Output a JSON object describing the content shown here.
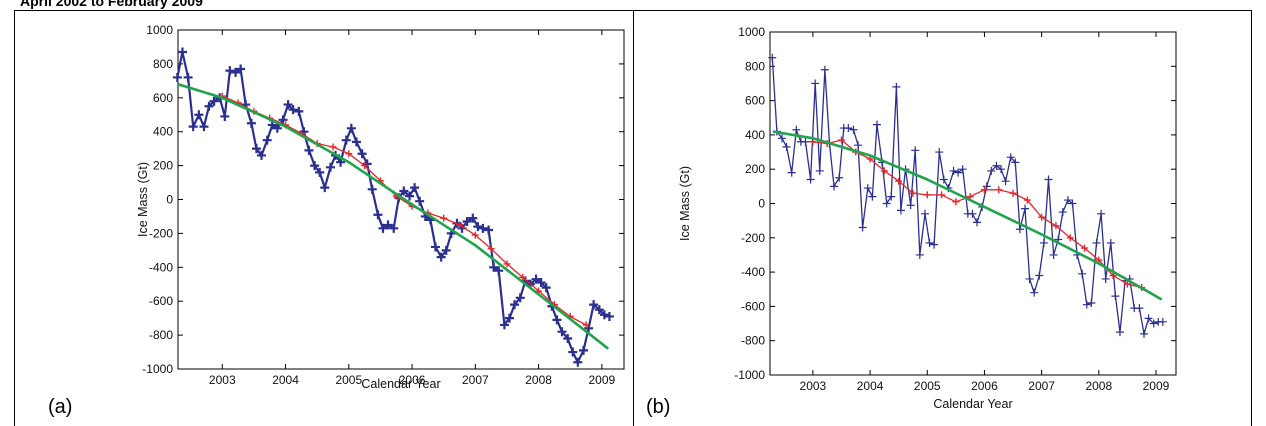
{
  "header": {
    "text": "April 2002 to February 2009"
  },
  "panels": [
    {
      "letter": "(a)"
    },
    {
      "letter": "(b)"
    }
  ],
  "chart_data": [
    {
      "type": "line",
      "panel": "(a)",
      "xlabel": "Calendar Year",
      "ylabel": "Ice Mass (Gt)",
      "xlim": [
        2002.3,
        2009.35
      ],
      "ylim": [
        -1000,
        1000
      ],
      "xticks": [
        2003,
        2004,
        2005,
        2006,
        2007,
        2008,
        2009
      ],
      "yticks": [
        -1000,
        -800,
        -600,
        -400,
        -200,
        0,
        200,
        400,
        600,
        800,
        1000
      ],
      "series": [
        {
          "color": "#2b2f8f",
          "marker": "+",
          "x": [
            2002.29,
            2002.37,
            2002.46,
            2002.54,
            2002.63,
            2002.71,
            2002.79,
            2002.87,
            2002.96,
            2003.04,
            2003.12,
            2003.21,
            2003.29,
            2003.37,
            2003.46,
            2003.54,
            2003.62,
            2003.71,
            2003.79,
            2003.87,
            2003.96,
            2004.04,
            2004.12,
            2004.21,
            2004.29,
            2004.37,
            2004.46,
            2004.54,
            2004.62,
            2004.71,
            2004.79,
            2004.87,
            2004.96,
            2005.04,
            2005.12,
            2005.21,
            2005.29,
            2005.37,
            2005.46,
            2005.54,
            2005.62,
            2005.71,
            2005.79,
            2005.87,
            2005.96,
            2006.04,
            2006.12,
            2006.21,
            2006.29,
            2006.37,
            2006.46,
            2006.54,
            2006.62,
            2006.71,
            2006.79,
            2006.87,
            2006.96,
            2007.04,
            2007.12,
            2007.21,
            2007.29,
            2007.37,
            2007.46,
            2007.54,
            2007.62,
            2007.71,
            2007.79,
            2007.87,
            2007.96,
            2008.04,
            2008.12,
            2008.21,
            2008.29,
            2008.37,
            2008.46,
            2008.54,
            2008.62,
            2008.71,
            2008.79,
            2008.87,
            2008.96,
            2009.04,
            2009.12
          ],
          "y": [
            720,
            870,
            720,
            430,
            500,
            430,
            550,
            580,
            600,
            490,
            760,
            750,
            770,
            560,
            450,
            300,
            260,
            350,
            440,
            420,
            470,
            560,
            530,
            520,
            400,
            290,
            200,
            160,
            70,
            190,
            260,
            220,
            350,
            420,
            340,
            270,
            210,
            60,
            -90,
            -170,
            -150,
            -170,
            10,
            50,
            20,
            70,
            -10,
            -100,
            -120,
            -280,
            -340,
            -300,
            -200,
            -140,
            -170,
            -130,
            -110,
            -160,
            -170,
            -180,
            -400,
            -420,
            -740,
            -700,
            -620,
            -580,
            -480,
            -500,
            -470,
            -490,
            -520,
            -630,
            -710,
            -780,
            -820,
            -900,
            -960,
            -890,
            -760,
            -620,
            -650,
            -680,
            -690
          ]
        },
        {
          "color": "#e3262b",
          "marker": "+",
          "x": [
            2003.0,
            2003.25,
            2003.5,
            2003.75,
            2004.0,
            2004.25,
            2004.5,
            2004.75,
            2005.0,
            2005.25,
            2005.5,
            2005.75,
            2006.0,
            2006.25,
            2006.5,
            2006.75,
            2007.0,
            2007.25,
            2007.5,
            2007.75,
            2008.0,
            2008.25,
            2008.5,
            2008.75
          ],
          "y": [
            610,
            570,
            520,
            480,
            440,
            390,
            330,
            310,
            270,
            200,
            110,
            20,
            -40,
            -80,
            -110,
            -150,
            -210,
            -290,
            -380,
            -460,
            -540,
            -620,
            -690,
            -740
          ]
        },
        {
          "color": "#1fa54b",
          "x": [
            2002.3,
            2003.0,
            2004.0,
            2005.0,
            2006.0,
            2007.0,
            2008.0,
            2009.1
          ],
          "y": [
            680,
            600,
            430,
            220,
            -30,
            -270,
            -560,
            -880
          ]
        }
      ]
    },
    {
      "type": "line",
      "panel": "(b)",
      "xlabel": "Calendar Year",
      "ylabel": "Ice Mass (Gt)",
      "xlim": [
        2002.25,
        2009.35
      ],
      "ylim": [
        -1000,
        1000
      ],
      "xticks": [
        2003,
        2004,
        2005,
        2006,
        2007,
        2008,
        2009
      ],
      "yticks": [
        -1000,
        -800,
        -600,
        -400,
        -200,
        0,
        200,
        400,
        600,
        800,
        1000
      ],
      "series": [
        {
          "color": "#2b2f8f",
          "marker": "+",
          "x": [
            2002.29,
            2002.37,
            2002.46,
            2002.54,
            2002.63,
            2002.71,
            2002.79,
            2002.87,
            2002.96,
            2003.04,
            2003.12,
            2003.21,
            2003.29,
            2003.37,
            2003.46,
            2003.54,
            2003.62,
            2003.71,
            2003.79,
            2003.87,
            2003.96,
            2004.04,
            2004.12,
            2004.21,
            2004.29,
            2004.37,
            2004.46,
            2004.54,
            2004.62,
            2004.71,
            2004.79,
            2004.87,
            2004.96,
            2005.04,
            2005.12,
            2005.21,
            2005.29,
            2005.37,
            2005.46,
            2005.54,
            2005.62,
            2005.71,
            2005.79,
            2005.87,
            2005.96,
            2006.04,
            2006.12,
            2006.21,
            2006.29,
            2006.37,
            2006.46,
            2006.54,
            2006.62,
            2006.71,
            2006.79,
            2006.87,
            2006.96,
            2007.04,
            2007.12,
            2007.21,
            2007.29,
            2007.37,
            2007.46,
            2007.54,
            2007.62,
            2007.71,
            2007.79,
            2007.87,
            2007.96,
            2008.04,
            2008.12,
            2008.21,
            2008.29,
            2008.37,
            2008.46,
            2008.54,
            2008.62,
            2008.71,
            2008.79,
            2008.87,
            2008.96,
            2009.04,
            2009.12
          ],
          "y": [
            850,
            420,
            380,
            330,
            180,
            430,
            360,
            360,
            140,
            700,
            190,
            780,
            350,
            100,
            150,
            440,
            440,
            430,
            340,
            -140,
            90,
            40,
            460,
            240,
            0,
            40,
            680,
            -40,
            200,
            -10,
            310,
            -300,
            -60,
            -230,
            -240,
            300,
            140,
            90,
            190,
            180,
            200,
            -60,
            -60,
            -110,
            -20,
            100,
            190,
            220,
            200,
            130,
            270,
            240,
            -150,
            -30,
            -440,
            -520,
            -420,
            -230,
            140,
            -300,
            -210,
            -50,
            20,
            0,
            -300,
            -410,
            -590,
            -580,
            -230,
            -60,
            -440,
            -230,
            -540,
            -750,
            -450,
            -440,
            -610,
            -610,
            -760,
            -670,
            -700,
            -690,
            -690
          ]
        },
        {
          "color": "#e3262b",
          "marker": "+",
          "x": [
            2003.0,
            2003.25,
            2003.5,
            2003.75,
            2004.0,
            2004.25,
            2004.5,
            2004.75,
            2005.0,
            2005.25,
            2005.5,
            2005.75,
            2006.0,
            2006.25,
            2006.5,
            2006.75,
            2007.0,
            2007.25,
            2007.5,
            2007.75,
            2008.0,
            2008.25,
            2008.5,
            2008.75
          ],
          "y": [
            360,
            350,
            370,
            300,
            260,
            190,
            130,
            60,
            50,
            50,
            10,
            40,
            80,
            80,
            60,
            20,
            -80,
            -130,
            -200,
            -260,
            -330,
            -420,
            -470,
            -490
          ]
        },
        {
          "color": "#1fa54b",
          "x": [
            2002.3,
            2003.0,
            2004.0,
            2005.0,
            2006.0,
            2007.0,
            2008.0,
            2009.1
          ],
          "y": [
            420,
            380,
            280,
            140,
            -20,
            -180,
            -350,
            -560
          ]
        }
      ]
    }
  ]
}
